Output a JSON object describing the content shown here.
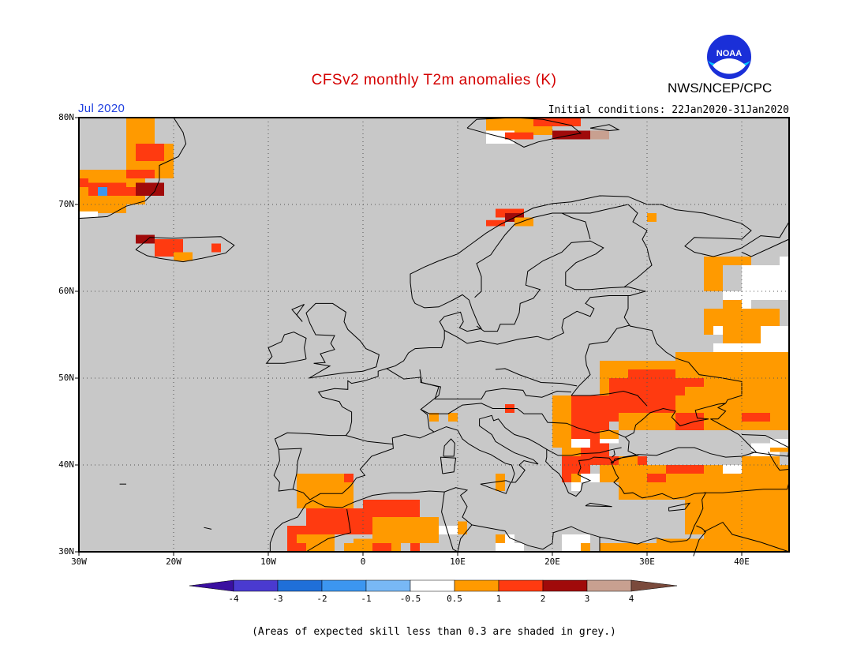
{
  "title": "CFSv2 monthly T2m anomalies (K)",
  "period": "Jul 2020",
  "initial_conditions": "Initial conditions: 22Jan2020-31Jan2020",
  "org_label": "NWS/NCEP/CPC",
  "logo_text": "NOAA",
  "colors": {
    "title": "#d40000",
    "period": "#2040e0",
    "land_skill_low": "#c8c8c8",
    "frame": "#000000",
    "grid": "#555555"
  },
  "map": {
    "lat_labels": [
      "80N",
      "70N",
      "60N",
      "50N",
      "40N",
      "30N"
    ],
    "lon_labels": [
      "30W",
      "20W",
      "10W",
      "0",
      "10E",
      "20E",
      "30E",
      "40E"
    ],
    "lat_values": [
      80,
      70,
      60,
      50,
      40,
      30
    ],
    "lon_values": [
      -30,
      -20,
      -10,
      0,
      10,
      20,
      30,
      40
    ],
    "lon_range": [
      -30,
      45
    ],
    "lat_range": [
      30,
      80
    ],
    "anomaly_regions": [
      {
        "name": "Greenland east coast",
        "category": "0.5 to 1",
        "lon": [
          -30,
          -22
        ],
        "lat": [
          68,
          80
        ]
      },
      {
        "name": "Iceland",
        "category": "1 to 2",
        "lon": [
          -24,
          -15
        ],
        "lat": [
          63,
          66
        ]
      },
      {
        "name": "Svalbard",
        "category": "1 to 3",
        "lon": [
          15,
          27
        ],
        "lat": [
          76,
          80
        ]
      },
      {
        "name": "Northern Norway",
        "category": "1 to 2",
        "lon": [
          14,
          18
        ],
        "lat": [
          67,
          70
        ]
      },
      {
        "name": "Iberia and North Africa",
        "category": "0.5 to 2",
        "lon": [
          -9,
          8
        ],
        "lat": [
          30,
          39
        ]
      },
      {
        "name": "Eastern Europe and Balkans",
        "category": "0.5 to 2",
        "lon": [
          20,
          36
        ],
        "lat": [
          40,
          50
        ]
      },
      {
        "name": "Turkey and Middle East",
        "category": "0.5 to 1",
        "lon": [
          27,
          45
        ],
        "lat": [
          30,
          40
        ]
      },
      {
        "name": "Western Russia",
        "category": "0.5 to 1",
        "lon": [
          35,
          45
        ],
        "lat": [
          44,
          64
        ]
      },
      {
        "name": "Northern Russia",
        "category": "-0.5 to 0.5",
        "lon": [
          38,
          45
        ],
        "lat": [
          52,
          63
        ]
      }
    ]
  },
  "colorbar": {
    "labels": [
      "-4",
      "-3",
      "-2",
      "-1",
      "-0.5",
      "0.5",
      "1",
      "2",
      "3",
      "4"
    ],
    "colors": [
      "#3a0fa0",
      "#4a3ad0",
      "#1f6fd8",
      "#3c96f0",
      "#78b8f5",
      "#ffffff",
      "#ff9a00",
      "#ff3a10",
      "#a00a0a",
      "#c8a090",
      "#7a4a3c"
    ]
  },
  "note": "(Areas of expected skill less than 0.3 are shaded in grey.)"
}
